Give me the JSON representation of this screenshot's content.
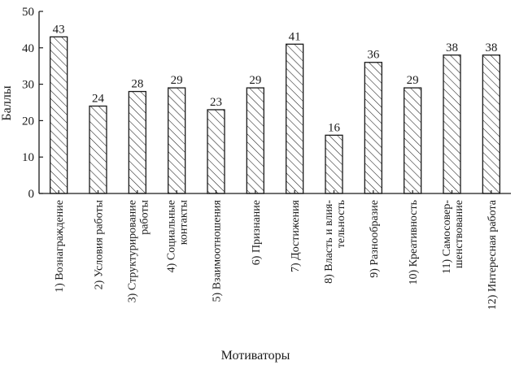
{
  "chart_data": {
    "type": "bar",
    "categories": [
      [
        "1) Вознаграждение"
      ],
      [
        "2) Условия работы"
      ],
      [
        "3) Структурирование",
        "работы"
      ],
      [
        "4) Социальные",
        "контакты"
      ],
      [
        "5) Взаимоотношения"
      ],
      [
        "6) Признание"
      ],
      [
        "7) Достижения"
      ],
      [
        "8) Власть и влия-",
        "тельность"
      ],
      [
        "9) Разнообразие"
      ],
      [
        "10) Креативность"
      ],
      [
        "11) Самосовер-",
        "шенствование"
      ],
      [
        "12) Интересная работа"
      ]
    ],
    "values": [
      43,
      24,
      28,
      29,
      23,
      29,
      41,
      16,
      36,
      29,
      38,
      38
    ],
    "value_labels": [
      "43",
      "24",
      "28",
      "29",
      "23",
      "29",
      "41",
      "16",
      "36",
      "29",
      "38",
      "38"
    ],
    "ylim": [
      0,
      50
    ],
    "yticks": [
      0,
      10,
      20,
      30,
      40,
      50
    ],
    "ylabel": "Баллы",
    "xlabel": "Мотиваторы",
    "bar_fill": "hatched",
    "bar_color": "#1a1a1a",
    "grid": false,
    "legend": "none"
  }
}
